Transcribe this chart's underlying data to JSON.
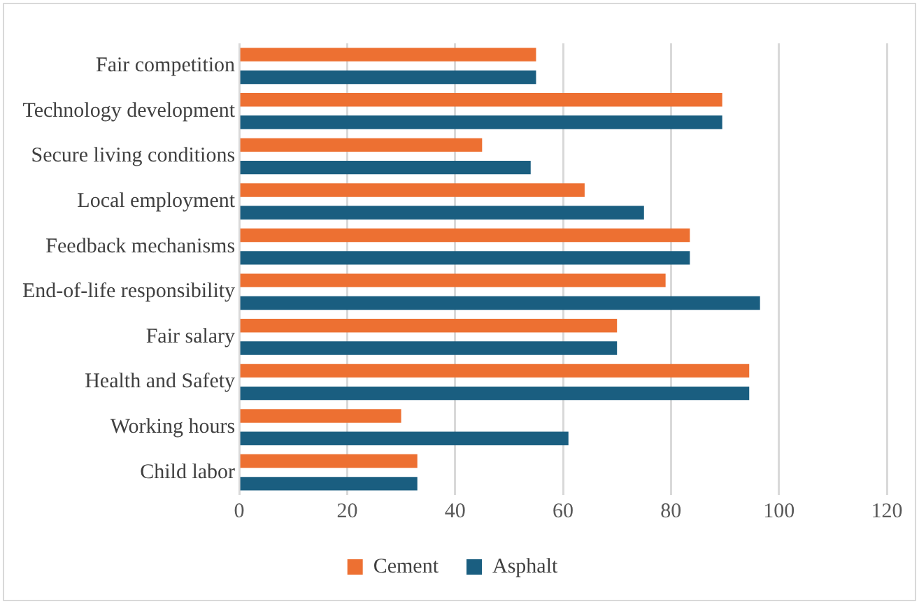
{
  "chart_data": {
    "type": "bar",
    "orientation": "horizontal",
    "categories": [
      "Fair competition",
      "Technology development",
      "Secure living conditions",
      "Local employment",
      "Feedback mechanisms",
      "End-of-life responsibility",
      "Fair salary",
      "Health and Safety",
      "Working hours",
      "Child labor"
    ],
    "series": [
      {
        "name": "Cement",
        "color": "#ed7032",
        "values": [
          55,
          89.5,
          45,
          64,
          83.5,
          79,
          70,
          94.5,
          30,
          33
        ]
      },
      {
        "name": "Asphalt",
        "color": "#1a5e80",
        "values": [
          55,
          89.5,
          54,
          75,
          83.5,
          96.5,
          70,
          94.5,
          61,
          33
        ]
      }
    ],
    "xlim": [
      0,
      120
    ],
    "xticks": [
      0,
      20,
      40,
      60,
      80,
      100,
      120
    ],
    "grid": "x",
    "legend": "bottom"
  }
}
